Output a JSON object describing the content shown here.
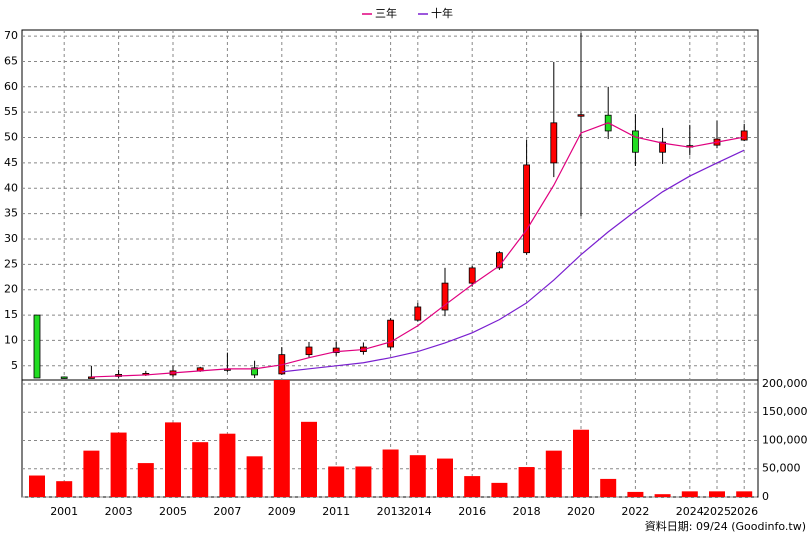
{
  "chart_data": {
    "type": "candlestick",
    "categories": [
      null,
      "2001",
      null,
      "2003",
      null,
      "2005",
      null,
      "2007",
      null,
      "2009",
      null,
      "2011",
      null,
      "2013",
      "2014",
      null,
      "2016",
      null,
      "2018",
      null,
      "2020",
      null,
      "2022",
      null,
      "2024",
      "2025",
      "2026"
    ],
    "open": [
      15,
      2.8,
      2.7,
      2.9,
      3.3,
      3.2,
      4.0,
      4.2,
      4.6,
      3.4,
      7.2,
      7.6,
      7.8,
      8.7,
      14.0,
      16.0,
      21.3,
      24.3,
      27.3,
      45.0,
      54.2,
      54.4,
      51.3,
      47.1,
      48.2,
      48.5,
      49.5
    ],
    "high": [
      15,
      2.9,
      5.0,
      4.2,
      4.0,
      5.0,
      4.8,
      7.6,
      6.0,
      8.7,
      9.7,
      9.8,
      9.6,
      14.4,
      17.4,
      24.3,
      24.7,
      27.6,
      49.5,
      64.9,
      70.6,
      60.0,
      54.6,
      51.9,
      52.5,
      53.3,
      52.7
    ],
    "low": [
      2.6,
      2.5,
      2.6,
      2.6,
      3.0,
      2.7,
      3.8,
      3.8,
      2.6,
      3.2,
      6.6,
      7.0,
      7.2,
      8.2,
      13.7,
      14.8,
      20.6,
      23.9,
      26.9,
      42.2,
      34.5,
      49.7,
      44.4,
      44.8,
      46.5,
      47.9,
      49.3
    ],
    "close": [
      2.6,
      2.7,
      2.8,
      3.3,
      3.5,
      4.0,
      4.6,
      4.4,
      3.2,
      7.2,
      8.7,
      8.5,
      8.7,
      14.0,
      16.6,
      21.3,
      24.3,
      27.3,
      44.6,
      52.9,
      54.5,
      51.3,
      47.1,
      49.1,
      48.4,
      49.7,
      51.3
    ],
    "up_color": "#ff0000",
    "down_color": "#22dd22",
    "lines": [
      {
        "name": "三年",
        "color": "#e0007f",
        "values": [
          null,
          null,
          2.8,
          3.0,
          3.2,
          3.6,
          4.0,
          4.4,
          4.4,
          5.2,
          6.6,
          7.8,
          8.2,
          9.7,
          12.9,
          17.0,
          21.0,
          24.7,
          31.8,
          40.6,
          50.9,
          52.9,
          50.1,
          48.9,
          48.1,
          49.1,
          50.1
        ]
      },
      {
        "name": "十年",
        "color": "#7a1fd0",
        "values": [
          null,
          null,
          null,
          null,
          null,
          null,
          null,
          null,
          null,
          3.8,
          4.4,
          5.0,
          5.6,
          6.6,
          7.8,
          9.5,
          11.5,
          14.1,
          17.4,
          21.9,
          26.9,
          31.4,
          35.5,
          39.3,
          42.4,
          45.0,
          47.5
        ]
      }
    ],
    "ylim": [
      2.2,
      71.2
    ],
    "yticks": [
      5,
      10,
      15,
      20,
      25,
      30,
      35,
      40,
      45,
      50,
      55,
      60,
      65,
      70
    ],
    "volume": {
      "values": [
        38000,
        28000,
        82000,
        114000,
        60000,
        132000,
        97000,
        112000,
        72000,
        207000,
        133000,
        54000,
        54000,
        84000,
        74000,
        68000,
        37000,
        25000,
        53000,
        82000,
        119000,
        32000,
        9000,
        5000,
        10000,
        10000,
        10000
      ],
      "color": "#ff0000",
      "ylim": [
        0,
        207000
      ],
      "yticks": [
        0,
        {
          "value": 50000,
          "label": "50,000"
        },
        {
          "value": 100000,
          "label": "100,000"
        },
        {
          "value": 150000,
          "label": "150,000"
        },
        {
          "value": 200000,
          "label": "200,000"
        }
      ]
    },
    "grid": true,
    "footnote": "資料日期: 09/24  (Goodinfo.tw)"
  }
}
